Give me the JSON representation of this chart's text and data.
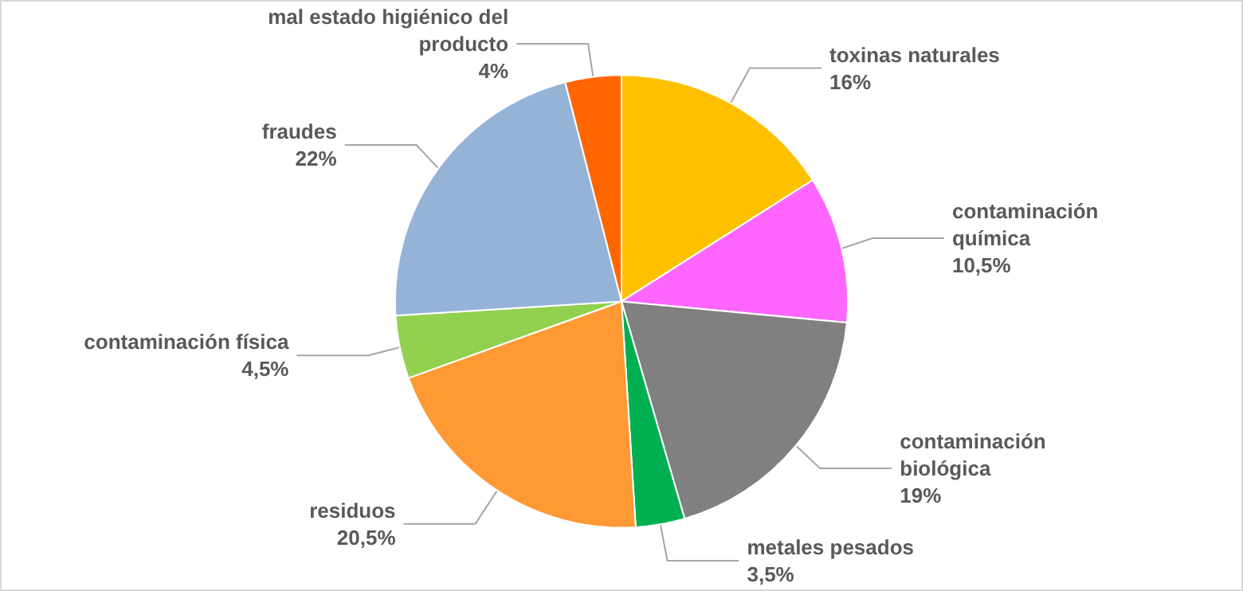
{
  "chart_data": {
    "type": "pie",
    "categories": [
      "toxinas naturales",
      "contaminación química",
      "contaminación biológica",
      "metales pesados",
      "residuos",
      "contaminación física",
      "fraudes",
      "mal estado higiénico del producto"
    ],
    "values": [
      16,
      10.5,
      19,
      3.5,
      20.5,
      4.5,
      22,
      4
    ],
    "colors": [
      "#ffc000",
      "#ff66ff",
      "#808080",
      "#00b050",
      "#ff9933",
      "#92d050",
      "#95b3d7",
      "#ff6600"
    ],
    "value_labels": [
      "16%",
      "10,5%",
      "19%",
      "3,5%",
      "20,5%",
      "4,5%",
      "22%",
      "4%"
    ],
    "legend": false
  }
}
